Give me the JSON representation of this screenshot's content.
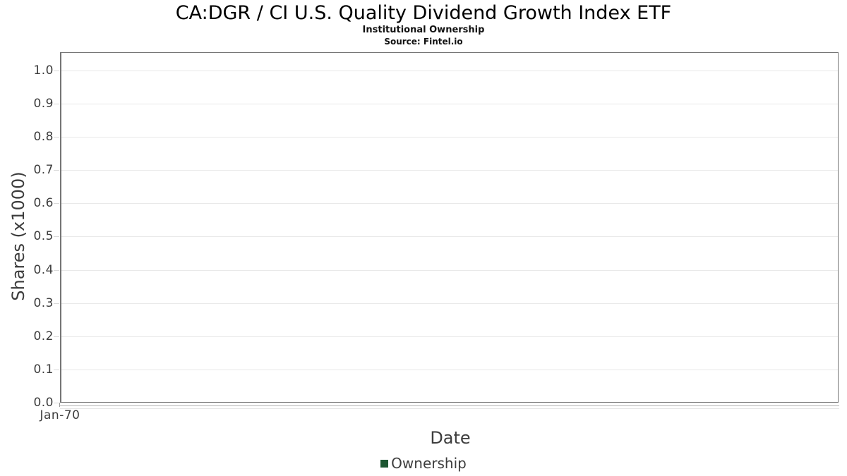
{
  "chart_data": {
    "type": "line",
    "title": "CA:DGR / CI U.S. Quality Dividend Growth Index ETF",
    "subtitle": "Institutional Ownership",
    "source": "Source: Fintel.io",
    "xlabel": "Date",
    "ylabel": "Shares (x1000)",
    "x_tick_labels": [
      "Jan-70"
    ],
    "y_ticks": [
      0.0,
      0.1,
      0.2,
      0.3,
      0.4,
      0.5,
      0.6,
      0.7,
      0.8,
      0.9,
      1.0
    ],
    "y_tick_labels": [
      "0.0",
      "0.1",
      "0.2",
      "0.3",
      "0.4",
      "0.5",
      "0.6",
      "0.7",
      "0.8",
      "0.9",
      "1.0"
    ],
    "ylim": [
      0,
      1.055
    ],
    "grid": true,
    "legend": {
      "position": "bottom",
      "entries": [
        {
          "label": "Ownership",
          "color": "#1d5631"
        }
      ]
    },
    "series": [
      {
        "name": "Ownership",
        "points": []
      }
    ]
  },
  "colors": {
    "plot_border": "#757575",
    "gridline": "#e9e9e9",
    "tick_mark": "#d9d9d9",
    "axis_text": "#3d3d3d",
    "title_text": "#000000",
    "legend_green": "#1d5631",
    "background": "#ffffff"
  }
}
